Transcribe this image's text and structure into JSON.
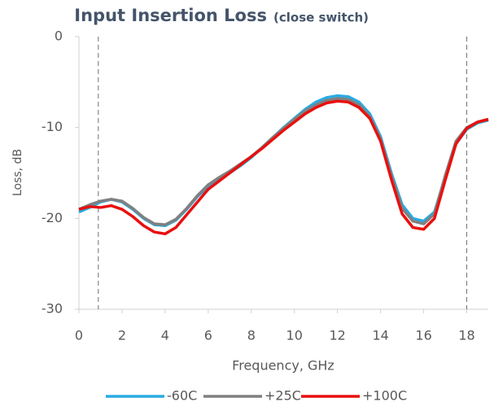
{
  "chart_data": {
    "type": "line",
    "title": "Input Insertion Loss",
    "subtitle": "(close switch)",
    "xlabel": "Frequency, GHz",
    "ylabel": "Loss, dB",
    "x": [
      0,
      0.5,
      1,
      1.5,
      2,
      2.5,
      3,
      3.5,
      4,
      4.5,
      5,
      5.5,
      6,
      6.5,
      7,
      7.5,
      8,
      8.5,
      9,
      9.5,
      10,
      10.5,
      11,
      11.5,
      12,
      12.5,
      13,
      13.5,
      14,
      14.5,
      15,
      15.5,
      16,
      16.5,
      17,
      17.5,
      18,
      18.5,
      19
    ],
    "series": [
      {
        "name": "-60C",
        "color": "#29abe2",
        "values": [
          -19.3,
          -18.8,
          -18.2,
          -17.9,
          -18.2,
          -19.0,
          -20.0,
          -20.7,
          -20.8,
          -20.2,
          -19.0,
          -17.6,
          -16.5,
          -15.7,
          -15.0,
          -14.2,
          -13.3,
          -12.2,
          -11.1,
          -10.0,
          -9.0,
          -8.0,
          -7.2,
          -6.7,
          -6.5,
          -6.6,
          -7.2,
          -8.5,
          -11.0,
          -15.0,
          -18.5,
          -20.0,
          -20.3,
          -19.3,
          -15.5,
          -11.8,
          -10.2,
          -9.5,
          -9.2
        ]
      },
      {
        "name": "+25C",
        "color": "#808080",
        "values": [
          -19.0,
          -18.5,
          -18.1,
          -17.9,
          -18.1,
          -18.9,
          -19.9,
          -20.6,
          -20.7,
          -20.1,
          -18.9,
          -17.5,
          -16.3,
          -15.5,
          -14.8,
          -14.0,
          -13.2,
          -12.2,
          -11.1,
          -10.1,
          -9.1,
          -8.2,
          -7.5,
          -7.0,
          -6.8,
          -6.9,
          -7.5,
          -8.8,
          -11.3,
          -15.3,
          -18.9,
          -20.3,
          -20.6,
          -19.5,
          -15.3,
          -11.5,
          -10.0,
          -9.4,
          -9.1
        ]
      },
      {
        "name": "+100C",
        "color": "#e8100f",
        "values": [
          -19.0,
          -18.7,
          -18.8,
          -18.6,
          -19.0,
          -19.8,
          -20.8,
          -21.5,
          -21.7,
          -21.0,
          -19.6,
          -18.2,
          -16.8,
          -15.9,
          -15.0,
          -14.1,
          -13.2,
          -12.3,
          -11.3,
          -10.3,
          -9.4,
          -8.5,
          -7.8,
          -7.3,
          -7.1,
          -7.2,
          -7.8,
          -9.0,
          -11.5,
          -15.7,
          -19.5,
          -21.0,
          -21.2,
          -20.0,
          -15.8,
          -11.8,
          -10.1,
          -9.4,
          -9.1
        ]
      }
    ],
    "vlines": [
      0.9,
      18
    ],
    "xlim": [
      0,
      19
    ],
    "ylim": [
      -30,
      0
    ],
    "xticks": [
      0,
      2,
      4,
      6,
      8,
      10,
      12,
      14,
      16,
      18
    ],
    "yticks": [
      0,
      -10,
      -20,
      -30
    ]
  }
}
